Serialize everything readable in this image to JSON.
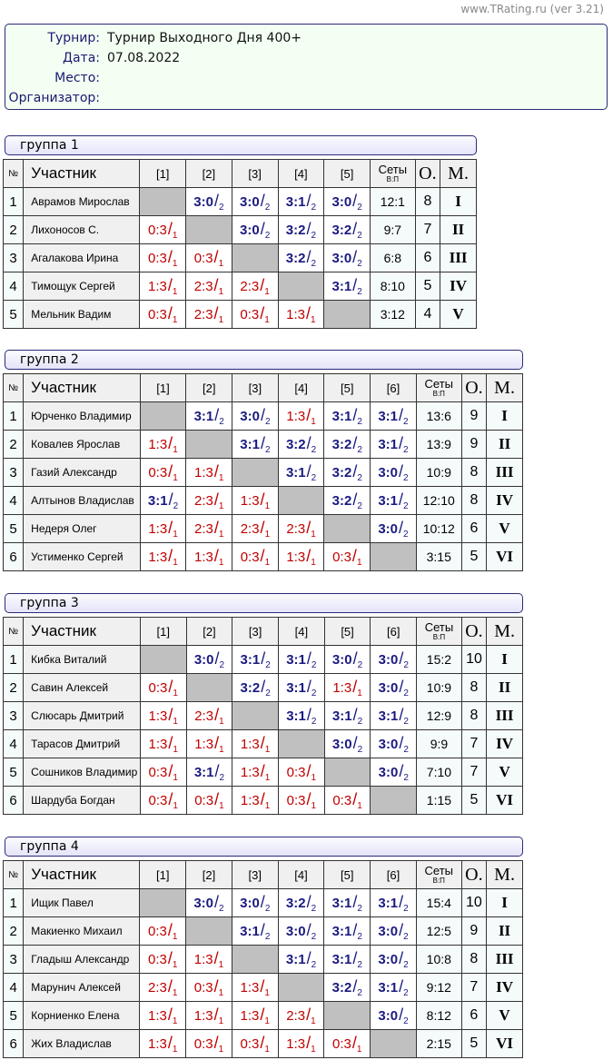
{
  "site": "www.TRating.ru (ver 3.21)",
  "info": [
    {
      "label": "Турнир:",
      "value": "Турнир Выходного Дня 400+"
    },
    {
      "label": "Дата:",
      "value": "07.08.2022"
    },
    {
      "label": "Место:",
      "value": ""
    },
    {
      "label": "Организатор:",
      "value": ""
    }
  ],
  "headers": {
    "num": "№",
    "participant": "Участник",
    "sets": "Сеты",
    "sets_sub": "В:П",
    "points": "О.",
    "place": "М."
  },
  "colors": {
    "win": "#1a1a80",
    "loss": "#c00000",
    "diagonal": "#c0c0c0"
  },
  "groups": [
    {
      "title": "группа 1",
      "rows": [
        {
          "n": "1",
          "name": "Аврамов Мирослав",
          "cells": [
            null,
            [
              "3:0",
              "2"
            ],
            [
              "3:0",
              "2"
            ],
            [
              "3:1",
              "2"
            ],
            [
              "3:0",
              "2"
            ]
          ],
          "sets": "12:1",
          "pts": "8",
          "place": "I"
        },
        {
          "n": "2",
          "name": "Лихоносов С.",
          "cells": [
            [
              "0:3",
              "1"
            ],
            null,
            [
              "3:0",
              "2"
            ],
            [
              "3:2",
              "2"
            ],
            [
              "3:2",
              "2"
            ]
          ],
          "sets": "9:7",
          "pts": "7",
          "place": "II"
        },
        {
          "n": "3",
          "name": "Агалакова Ирина",
          "cells": [
            [
              "0:3",
              "1"
            ],
            [
              "0:3",
              "1"
            ],
            null,
            [
              "3:2",
              "2"
            ],
            [
              "3:0",
              "2"
            ]
          ],
          "sets": "6:8",
          "pts": "6",
          "place": "III"
        },
        {
          "n": "4",
          "name": "Тимощук Сергей",
          "cells": [
            [
              "1:3",
              "1"
            ],
            [
              "2:3",
              "1"
            ],
            [
              "2:3",
              "1"
            ],
            null,
            [
              "3:1",
              "2"
            ]
          ],
          "sets": "8:10",
          "pts": "5",
          "place": "IV"
        },
        {
          "n": "5",
          "name": "Мельник Вадим",
          "cells": [
            [
              "0:3",
              "1"
            ],
            [
              "2:3",
              "1"
            ],
            [
              "0:3",
              "1"
            ],
            [
              "1:3",
              "1"
            ],
            null
          ],
          "sets": "3:12",
          "pts": "4",
          "place": "V"
        }
      ]
    },
    {
      "title": "группа 2",
      "rows": [
        {
          "n": "1",
          "name": "Юрченко Владимир",
          "cells": [
            null,
            [
              "3:1",
              "2"
            ],
            [
              "3:0",
              "2"
            ],
            [
              "1:3",
              "1"
            ],
            [
              "3:1",
              "2"
            ],
            [
              "3:1",
              "2"
            ]
          ],
          "sets": "13:6",
          "pts": "9",
          "place": "I"
        },
        {
          "n": "2",
          "name": "Ковалев Ярослав",
          "cells": [
            [
              "1:3",
              "1"
            ],
            null,
            [
              "3:1",
              "2"
            ],
            [
              "3:2",
              "2"
            ],
            [
              "3:2",
              "2"
            ],
            [
              "3:1",
              "2"
            ]
          ],
          "sets": "13:9",
          "pts": "9",
          "place": "II"
        },
        {
          "n": "3",
          "name": "Газий Александр",
          "cells": [
            [
              "0:3",
              "1"
            ],
            [
              "1:3",
              "1"
            ],
            null,
            [
              "3:1",
              "2"
            ],
            [
              "3:2",
              "2"
            ],
            [
              "3:0",
              "2"
            ]
          ],
          "sets": "10:9",
          "pts": "8",
          "place": "III"
        },
        {
          "n": "4",
          "name": "Алтынов Владислав",
          "cells": [
            [
              "3:1",
              "2"
            ],
            [
              "2:3",
              "1"
            ],
            [
              "1:3",
              "1"
            ],
            null,
            [
              "3:2",
              "2"
            ],
            [
              "3:1",
              "2"
            ]
          ],
          "sets": "12:10",
          "pts": "8",
          "place": "IV"
        },
        {
          "n": "5",
          "name": "Недеря Олег",
          "cells": [
            [
              "1:3",
              "1"
            ],
            [
              "2:3",
              "1"
            ],
            [
              "2:3",
              "1"
            ],
            [
              "2:3",
              "1"
            ],
            null,
            [
              "3:0",
              "2"
            ]
          ],
          "sets": "10:12",
          "pts": "6",
          "place": "V"
        },
        {
          "n": "6",
          "name": "Устименко Сергей",
          "cells": [
            [
              "1:3",
              "1"
            ],
            [
              "1:3",
              "1"
            ],
            [
              "0:3",
              "1"
            ],
            [
              "1:3",
              "1"
            ],
            [
              "0:3",
              "1"
            ],
            null
          ],
          "sets": "3:15",
          "pts": "5",
          "place": "VI"
        }
      ]
    },
    {
      "title": "группа 3",
      "rows": [
        {
          "n": "1",
          "name": "Кибка Виталий",
          "cells": [
            null,
            [
              "3:0",
              "2"
            ],
            [
              "3:1",
              "2"
            ],
            [
              "3:1",
              "2"
            ],
            [
              "3:0",
              "2"
            ],
            [
              "3:0",
              "2"
            ]
          ],
          "sets": "15:2",
          "pts": "10",
          "place": "I"
        },
        {
          "n": "2",
          "name": "Савин Алексей",
          "cells": [
            [
              "0:3",
              "1"
            ],
            null,
            [
              "3:2",
              "2"
            ],
            [
              "3:1",
              "2"
            ],
            [
              "1:3",
              "1"
            ],
            [
              "3:0",
              "2"
            ]
          ],
          "sets": "10:9",
          "pts": "8",
          "place": "II"
        },
        {
          "n": "3",
          "name": "Слюсарь Дмитрий",
          "cells": [
            [
              "1:3",
              "1"
            ],
            [
              "2:3",
              "1"
            ],
            null,
            [
              "3:1",
              "2"
            ],
            [
              "3:1",
              "2"
            ],
            [
              "3:1",
              "2"
            ]
          ],
          "sets": "12:9",
          "pts": "8",
          "place": "III"
        },
        {
          "n": "4",
          "name": "Тарасов Дмитрий",
          "cells": [
            [
              "1:3",
              "1"
            ],
            [
              "1:3",
              "1"
            ],
            [
              "1:3",
              "1"
            ],
            null,
            [
              "3:0",
              "2"
            ],
            [
              "3:0",
              "2"
            ]
          ],
          "sets": "9:9",
          "pts": "7",
          "place": "IV"
        },
        {
          "n": "5",
          "name": "Сошников Владимир",
          "cells": [
            [
              "0:3",
              "1"
            ],
            [
              "3:1",
              "2"
            ],
            [
              "1:3",
              "1"
            ],
            [
              "0:3",
              "1"
            ],
            null,
            [
              "3:0",
              "2"
            ]
          ],
          "sets": "7:10",
          "pts": "7",
          "place": "V"
        },
        {
          "n": "6",
          "name": "Шардуба Богдан",
          "cells": [
            [
              "0:3",
              "1"
            ],
            [
              "0:3",
              "1"
            ],
            [
              "1:3",
              "1"
            ],
            [
              "0:3",
              "1"
            ],
            [
              "0:3",
              "1"
            ],
            null
          ],
          "sets": "1:15",
          "pts": "5",
          "place": "VI"
        }
      ]
    },
    {
      "title": "группа 4",
      "rows": [
        {
          "n": "1",
          "name": "Ищик Павел",
          "cells": [
            null,
            [
              "3:0",
              "2"
            ],
            [
              "3:0",
              "2"
            ],
            [
              "3:2",
              "2"
            ],
            [
              "3:1",
              "2"
            ],
            [
              "3:1",
              "2"
            ]
          ],
          "sets": "15:4",
          "pts": "10",
          "place": "I"
        },
        {
          "n": "2",
          "name": "Макиенко Михаил",
          "cells": [
            [
              "0:3",
              "1"
            ],
            null,
            [
              "3:1",
              "2"
            ],
            [
              "3:0",
              "2"
            ],
            [
              "3:1",
              "2"
            ],
            [
              "3:0",
              "2"
            ]
          ],
          "sets": "12:5",
          "pts": "9",
          "place": "II"
        },
        {
          "n": "3",
          "name": "Гладыш Александр",
          "cells": [
            [
              "0:3",
              "1"
            ],
            [
              "1:3",
              "1"
            ],
            null,
            [
              "3:1",
              "2"
            ],
            [
              "3:1",
              "2"
            ],
            [
              "3:0",
              "2"
            ]
          ],
          "sets": "10:8",
          "pts": "8",
          "place": "III"
        },
        {
          "n": "4",
          "name": "Марунич Алексей",
          "cells": [
            [
              "2:3",
              "1"
            ],
            [
              "0:3",
              "1"
            ],
            [
              "1:3",
              "1"
            ],
            null,
            [
              "3:2",
              "2"
            ],
            [
              "3:1",
              "2"
            ]
          ],
          "sets": "9:12",
          "pts": "7",
          "place": "IV"
        },
        {
          "n": "5",
          "name": "Корниенко Елена",
          "cells": [
            [
              "1:3",
              "1"
            ],
            [
              "1:3",
              "1"
            ],
            [
              "1:3",
              "1"
            ],
            [
              "2:3",
              "1"
            ],
            null,
            [
              "3:0",
              "2"
            ]
          ],
          "sets": "8:12",
          "pts": "6",
          "place": "V"
        },
        {
          "n": "6",
          "name": "Жих Владислав",
          "cells": [
            [
              "1:3",
              "1"
            ],
            [
              "0:3",
              "1"
            ],
            [
              "0:3",
              "1"
            ],
            [
              "1:3",
              "1"
            ],
            [
              "0:3",
              "1"
            ],
            null
          ],
          "sets": "2:15",
          "pts": "5",
          "place": "VI"
        }
      ]
    }
  ]
}
